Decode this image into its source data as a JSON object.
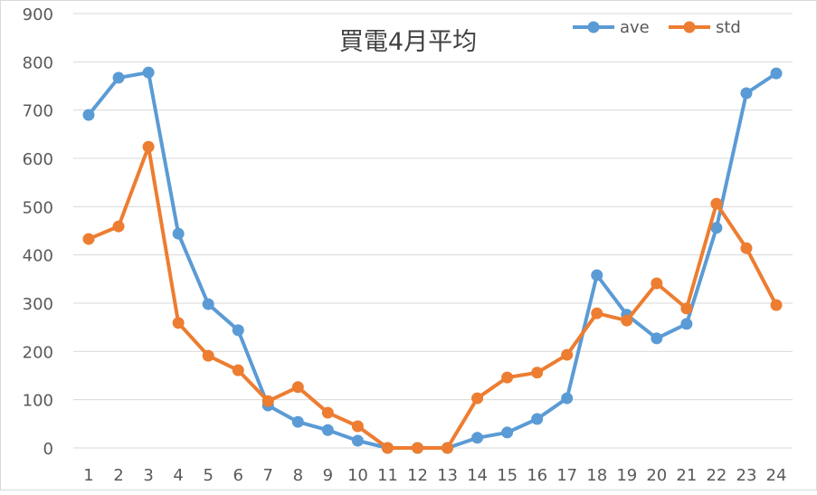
{
  "chart_data": {
    "type": "line",
    "title": "買電4月平均",
    "xlabel": "",
    "ylabel": "",
    "categories": [
      "1",
      "2",
      "3",
      "4",
      "5",
      "6",
      "7",
      "8",
      "9",
      "10",
      "11",
      "12",
      "13",
      "14",
      "15",
      "16",
      "17",
      "18",
      "19",
      "20",
      "21",
      "22",
      "23",
      "24"
    ],
    "ylim": [
      0,
      900
    ],
    "yticks": [
      0,
      100,
      200,
      300,
      400,
      500,
      600,
      700,
      800,
      900
    ],
    "grid": "horizontal",
    "legend": "top-right",
    "series": [
      {
        "name": "ave",
        "color": "#5B9BD5",
        "values": [
          690,
          767,
          778,
          444,
          298,
          244,
          88,
          54,
          37,
          15,
          0,
          0,
          0,
          21,
          32,
          60,
          103,
          358,
          276,
          227,
          257,
          456,
          735,
          776
        ]
      },
      {
        "name": "std",
        "color": "#ED7D31",
        "values": [
          433,
          459,
          624,
          259,
          191,
          161,
          97,
          126,
          73,
          45,
          0,
          0,
          0,
          103,
          146,
          156,
          193,
          279,
          264,
          341,
          289,
          506,
          414,
          296
        ]
      }
    ]
  }
}
